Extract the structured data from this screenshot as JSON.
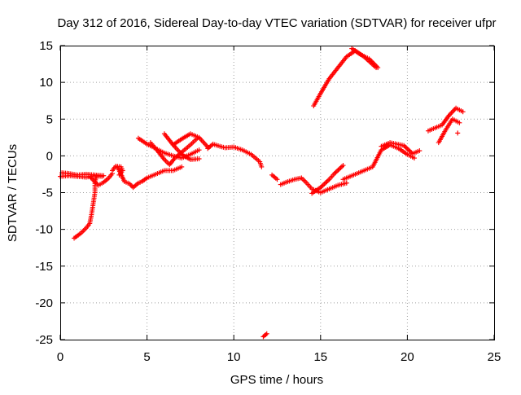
{
  "chart_data": {
    "type": "scatter",
    "title": "Day 312 of 2016, Sidereal Day-to-day VTEC variation (SDTVAR) for receiver ufpr",
    "xlabel": "GPS time / hours",
    "ylabel": "SDTVAR / TECUs",
    "xlim": [
      0,
      25
    ],
    "ylim": [
      -25,
      15
    ],
    "xticks": [
      0,
      5,
      10,
      15,
      20,
      25
    ],
    "yticks": [
      -25,
      -20,
      -15,
      -10,
      -5,
      0,
      5,
      10,
      15
    ],
    "grid": true,
    "marker": "+",
    "series_color": "#ff0000",
    "series": [
      {
        "segments": [
          [
            [
              0.0,
              -2.8
            ],
            [
              0.5,
              -2.7
            ],
            [
              1.0,
              -2.8
            ],
            [
              1.5,
              -2.9
            ],
            [
              2.0,
              -2.7
            ],
            [
              2.4,
              -2.8
            ]
          ],
          [
            [
              0.1,
              -2.3
            ],
            [
              0.5,
              -2.4
            ],
            [
              1.0,
              -2.6
            ],
            [
              1.5,
              -2.5
            ],
            [
              2.0,
              -2.6
            ],
            [
              2.5,
              -2.7
            ]
          ],
          [
            [
              0.8,
              -11.2
            ],
            [
              1.2,
              -10.5
            ],
            [
              1.5,
              -9.8
            ],
            [
              1.7,
              -9.2
            ],
            [
              1.8,
              -8.0
            ],
            [
              1.9,
              -6.5
            ],
            [
              2.0,
              -5.0
            ],
            [
              2.0,
              -3.5
            ],
            [
              2.1,
              -2.8
            ]
          ],
          [
            [
              1.7,
              -2.8
            ],
            [
              1.9,
              -3.3
            ],
            [
              2.2,
              -4.0
            ],
            [
              2.5,
              -3.6
            ],
            [
              2.8,
              -3.0
            ],
            [
              3.0,
              -2.4
            ]
          ],
          [
            [
              3.0,
              -2.0
            ],
            [
              3.2,
              -1.4
            ],
            [
              3.5,
              -1.5
            ],
            [
              3.6,
              -2.0
            ],
            [
              3.4,
              -2.6
            ]
          ],
          [
            [
              3.3,
              -1.5
            ],
            [
              3.5,
              -2.5
            ],
            [
              3.7,
              -3.5
            ],
            [
              4.0,
              -3.8
            ],
            [
              4.2,
              -4.3
            ],
            [
              4.5,
              -3.7
            ],
            [
              4.7,
              -3.5
            ],
            [
              5.0,
              -3.0
            ],
            [
              5.5,
              -2.5
            ],
            [
              6.0,
              -2.0
            ],
            [
              6.5,
              -2.0
            ],
            [
              7.0,
              -1.5
            ]
          ],
          [
            [
              4.5,
              2.4
            ],
            [
              5.0,
              1.6
            ],
            [
              5.5,
              1.0
            ],
            [
              6.0,
              0.4
            ],
            [
              6.5,
              0.0
            ],
            [
              7.0,
              -0.3
            ],
            [
              7.5,
              0.2
            ],
            [
              8.0,
              0.8
            ]
          ],
          [
            [
              5.2,
              1.8
            ],
            [
              5.5,
              1.0
            ],
            [
              6.0,
              -0.5
            ],
            [
              6.3,
              -1.2
            ],
            [
              6.6,
              -0.3
            ],
            [
              7.0,
              0.5
            ],
            [
              7.5,
              1.5
            ],
            [
              7.9,
              2.4
            ]
          ],
          [
            [
              6.0,
              3.0
            ],
            [
              6.5,
              1.5
            ],
            [
              7.0,
              0.2
            ],
            [
              7.5,
              -0.5
            ],
            [
              8.0,
              -0.4
            ]
          ],
          [
            [
              6.5,
              1.5
            ],
            [
              7.0,
              2.3
            ],
            [
              7.5,
              3.0
            ],
            [
              8.0,
              2.5
            ],
            [
              8.5,
              1.2
            ]
          ],
          [
            [
              8.5,
              1.0
            ],
            [
              8.8,
              1.6
            ],
            [
              9.2,
              1.3
            ],
            [
              9.5,
              1.1
            ],
            [
              10.0,
              1.2
            ],
            [
              10.5,
              0.8
            ],
            [
              11.0,
              0.2
            ],
            [
              11.5,
              -0.8
            ],
            [
              11.6,
              -1.5
            ]
          ],
          [
            [
              11.7,
              -24.6
            ],
            [
              11.9,
              -24.2
            ]
          ],
          [
            [
              12.2,
              -2.6
            ],
            [
              12.5,
              -3.2
            ]
          ],
          [
            [
              12.7,
              -3.9
            ],
            [
              13.0,
              -3.6
            ],
            [
              13.5,
              -3.2
            ],
            [
              13.9,
              -3.0
            ],
            [
              14.2,
              -3.7
            ],
            [
              14.5,
              -4.5
            ],
            [
              15.0,
              -5.0
            ],
            [
              15.5,
              -4.5
            ],
            [
              16.0,
              -4.0
            ],
            [
              16.5,
              -3.7
            ]
          ],
          [
            [
              14.5,
              -5.1
            ],
            [
              15.0,
              -4.3
            ],
            [
              15.5,
              -3.2
            ],
            [
              15.8,
              -2.4
            ],
            [
              16.3,
              -1.3
            ]
          ],
          [
            [
              16.3,
              -3.2
            ],
            [
              17.0,
              -2.5
            ],
            [
              17.5,
              -2.0
            ],
            [
              18.0,
              -1.5
            ],
            [
              18.5,
              0.8
            ],
            [
              19.0,
              1.5
            ],
            [
              19.5,
              1.0
            ],
            [
              20.0,
              0.2
            ],
            [
              20.4,
              -0.3
            ]
          ],
          [
            [
              18.5,
              1.3
            ],
            [
              19.0,
              1.8
            ],
            [
              19.8,
              1.4
            ],
            [
              20.3,
              0.3
            ],
            [
              20.7,
              0.7
            ]
          ],
          [
            [
              14.6,
              6.8
            ],
            [
              15.0,
              8.5
            ],
            [
              15.5,
              10.5
            ],
            [
              16.0,
              12.0
            ],
            [
              16.5,
              13.5
            ],
            [
              17.0,
              14.3
            ],
            [
              17.5,
              13.5
            ],
            [
              18.2,
              12.0
            ]
          ],
          [
            [
              16.8,
              14.6
            ],
            [
              17.3,
              13.8
            ],
            [
              17.8,
              13.2
            ],
            [
              18.3,
              12.0
            ]
          ],
          [
            [
              21.2,
              3.4
            ],
            [
              21.6,
              3.8
            ],
            [
              22.0,
              4.2
            ],
            [
              22.4,
              5.5
            ],
            [
              22.8,
              6.5
            ],
            [
              23.2,
              6.0
            ]
          ],
          [
            [
              21.8,
              1.8
            ],
            [
              22.2,
              3.5
            ],
            [
              22.6,
              5.0
            ],
            [
              23.0,
              4.5
            ]
          ],
          [
            [
              22.9,
              3.1
            ]
          ]
        ]
      }
    ]
  }
}
